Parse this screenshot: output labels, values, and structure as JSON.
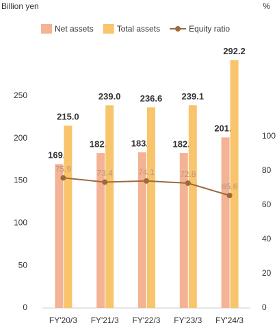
{
  "chart_data": {
    "type": "bar",
    "y_axis_label": "Billion yen",
    "y2_axis_label": "%",
    "categories": [
      "FY'20/3",
      "FY'21/3",
      "FY'22/3",
      "FY'23/3",
      "FY'24/3"
    ],
    "series": [
      {
        "name": "Net assets",
        "color": "#f4b395",
        "type": "bar",
        "values": [
          169.6,
          182.7,
          183.5,
          182.7,
          201.1
        ]
      },
      {
        "name": "Total assets",
        "color": "#f8c46c",
        "type": "bar",
        "values": [
          215.0,
          239.0,
          236.6,
          239.1,
          292.2
        ],
        "value_labels": [
          "215.0",
          "239.0",
          "236.6",
          "239.1",
          "292.2"
        ]
      },
      {
        "name": "Equity ratio",
        "color": "#9c6b3c",
        "type": "line",
        "axis": "y2",
        "values": [
          75.9,
          73.4,
          74.1,
          72.8,
          65.6
        ]
      }
    ],
    "ylim": [
      0,
      300
    ],
    "yticks": [
      0,
      50,
      100,
      150,
      200,
      250
    ],
    "y2lim": [
      0,
      148.4
    ],
    "y2ticks": [
      0,
      20,
      40,
      60,
      80,
      100
    ],
    "legend": "top",
    "grid": false
  }
}
